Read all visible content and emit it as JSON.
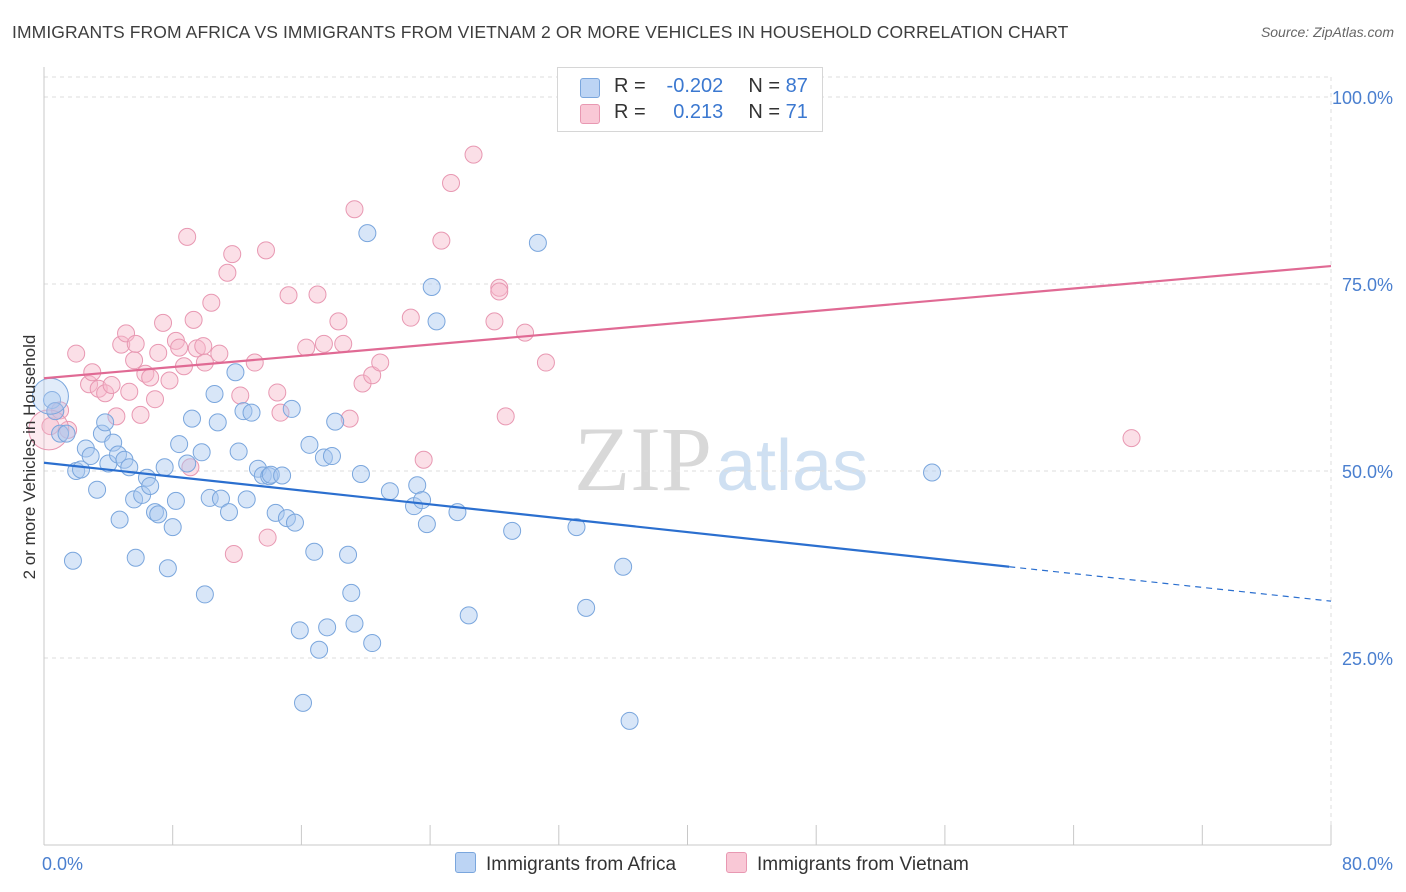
{
  "title": "IMMIGRANTS FROM AFRICA VS IMMIGRANTS FROM VIETNAM 2 OR MORE VEHICLES IN HOUSEHOLD CORRELATION CHART",
  "source": "Source: ZipAtlas.com",
  "watermark": {
    "zip": "ZIP",
    "atlas": "atlas"
  },
  "legend": [
    {
      "r_label": "R =",
      "r_value": "-0.202",
      "n_label": "N =",
      "n_value": "87"
    },
    {
      "r_label": "R =",
      "r_value": "0.213",
      "n_label": "N =",
      "n_value": "71"
    }
  ],
  "colors": {
    "africa_fill": "#a8c8f0",
    "africa_stroke": "#7aa6dd",
    "africa_line": "#2b6fcf",
    "vietnam_fill": "#f6b8ca",
    "vietnam_stroke": "#e898b2",
    "vietnam_line": "#e06a94",
    "tick_label": "#4a7fcf",
    "grid": "#dedede"
  },
  "chart_data": {
    "type": "scatter",
    "title": "IMMIGRANTS FROM AFRICA VS IMMIGRANTS FROM VIETNAM 2 OR MORE VEHICLES IN HOUSEHOLD CORRELATION CHART",
    "xlabel": "",
    "ylabel": "2 or more Vehicles in Household",
    "xlim": [
      0,
      80
    ],
    "ylim": [
      0,
      100
    ],
    "x_tick_labels": [
      "0.0%",
      "80.0%"
    ],
    "y_ticks": [
      25,
      50,
      75,
      100
    ],
    "y_tick_labels": [
      "25.0%",
      "50.0%",
      "75.0%",
      "100.0%"
    ],
    "grid": true,
    "legend_position": "bottom",
    "series": [
      {
        "name": "Immigrants from Africa",
        "r": -0.202,
        "n": 87,
        "trend": {
          "x_start": 0,
          "y_start": 51.1,
          "x_solid_end": 60,
          "y_solid_end": 37.2,
          "x_end": 80,
          "y_end": 32.6
        },
        "points": [
          [
            0.5,
            59.5
          ],
          [
            0.7,
            58.0
          ],
          [
            1.0,
            55.0
          ],
          [
            1.4,
            55.0
          ],
          [
            1.8,
            38.0
          ],
          [
            2.0,
            50.0
          ],
          [
            2.3,
            50.2
          ],
          [
            2.6,
            53.0
          ],
          [
            2.9,
            52.0
          ],
          [
            3.3,
            47.5
          ],
          [
            3.6,
            55.0
          ],
          [
            3.8,
            56.5
          ],
          [
            4.0,
            51.0
          ],
          [
            4.3,
            53.8
          ],
          [
            4.6,
            52.2
          ],
          [
            4.7,
            43.5
          ],
          [
            5.0,
            51.5
          ],
          [
            5.3,
            50.5
          ],
          [
            5.6,
            46.2
          ],
          [
            5.7,
            38.4
          ],
          [
            6.1,
            46.8
          ],
          [
            6.4,
            49.1
          ],
          [
            6.6,
            48.0
          ],
          [
            6.9,
            44.5
          ],
          [
            7.1,
            44.2
          ],
          [
            7.5,
            50.5
          ],
          [
            7.7,
            37.0
          ],
          [
            8.0,
            42.5
          ],
          [
            8.2,
            46.0
          ],
          [
            8.4,
            53.6
          ],
          [
            8.9,
            51.0
          ],
          [
            9.2,
            57.0
          ],
          [
            9.8,
            52.5
          ],
          [
            10.0,
            33.5
          ],
          [
            10.3,
            46.4
          ],
          [
            10.6,
            60.3
          ],
          [
            10.8,
            56.5
          ],
          [
            11.0,
            46.3
          ],
          [
            11.5,
            44.5
          ],
          [
            11.9,
            63.2
          ],
          [
            12.1,
            52.6
          ],
          [
            12.4,
            58.0
          ],
          [
            12.6,
            46.2
          ],
          [
            12.9,
            57.8
          ],
          [
            13.3,
            50.3
          ],
          [
            13.6,
            49.4
          ],
          [
            14.0,
            49.3
          ],
          [
            14.1,
            49.5
          ],
          [
            14.4,
            44.4
          ],
          [
            14.8,
            49.4
          ],
          [
            15.1,
            43.7
          ],
          [
            15.4,
            58.3
          ],
          [
            15.6,
            43.1
          ],
          [
            15.9,
            28.7
          ],
          [
            16.1,
            19.0
          ],
          [
            16.5,
            53.5
          ],
          [
            16.8,
            39.2
          ],
          [
            17.1,
            26.1
          ],
          [
            17.4,
            51.8
          ],
          [
            17.6,
            29.1
          ],
          [
            17.9,
            52.0
          ],
          [
            18.1,
            56.6
          ],
          [
            18.9,
            38.8
          ],
          [
            19.1,
            33.7
          ],
          [
            19.3,
            29.6
          ],
          [
            19.7,
            49.6
          ],
          [
            20.1,
            81.8
          ],
          [
            20.4,
            27.0
          ],
          [
            21.5,
            47.3
          ],
          [
            23.0,
            45.3
          ],
          [
            23.2,
            48.1
          ],
          [
            23.5,
            46.1
          ],
          [
            23.8,
            42.9
          ],
          [
            24.1,
            74.6
          ],
          [
            24.4,
            70.0
          ],
          [
            25.7,
            44.5
          ],
          [
            26.4,
            30.7
          ],
          [
            29.1,
            42.0
          ],
          [
            30.7,
            80.5
          ],
          [
            33.1,
            42.5
          ],
          [
            33.7,
            31.7
          ],
          [
            36.0,
            37.2
          ],
          [
            36.4,
            16.6
          ],
          [
            55.2,
            49.8
          ]
        ]
      },
      {
        "name": "Immigrants from Vietnam",
        "r": 0.213,
        "n": 71,
        "trend": {
          "x_start": 0,
          "y_start": 62.4,
          "x_end": 80,
          "y_end": 77.4
        },
        "points": [
          [
            0.4,
            56.0
          ],
          [
            0.7,
            58.0
          ],
          [
            1.0,
            58.1
          ],
          [
            1.5,
            55.5
          ],
          [
            2.0,
            65.7
          ],
          [
            2.8,
            61.6
          ],
          [
            3.0,
            63.2
          ],
          [
            3.4,
            61.0
          ],
          [
            3.8,
            60.4
          ],
          [
            4.2,
            61.5
          ],
          [
            4.5,
            57.3
          ],
          [
            4.8,
            66.9
          ],
          [
            5.1,
            68.4
          ],
          [
            5.3,
            60.6
          ],
          [
            5.6,
            64.8
          ],
          [
            5.7,
            67.0
          ],
          [
            6.0,
            57.5
          ],
          [
            6.3,
            63.0
          ],
          [
            6.6,
            62.5
          ],
          [
            6.9,
            59.6
          ],
          [
            7.1,
            65.8
          ],
          [
            7.4,
            69.8
          ],
          [
            7.8,
            62.1
          ],
          [
            8.2,
            67.4
          ],
          [
            8.4,
            66.5
          ],
          [
            8.7,
            64.0
          ],
          [
            8.9,
            81.3
          ],
          [
            9.1,
            50.5
          ],
          [
            9.3,
            70.2
          ],
          [
            9.5,
            66.4
          ],
          [
            9.9,
            66.7
          ],
          [
            10.0,
            64.5
          ],
          [
            10.4,
            72.5
          ],
          [
            10.9,
            65.7
          ],
          [
            11.4,
            76.5
          ],
          [
            11.7,
            79.0
          ],
          [
            11.8,
            38.9
          ],
          [
            12.2,
            60.1
          ],
          [
            13.1,
            64.5
          ],
          [
            13.8,
            79.5
          ],
          [
            13.9,
            41.1
          ],
          [
            14.5,
            60.5
          ],
          [
            14.7,
            57.8
          ],
          [
            15.2,
            73.5
          ],
          [
            16.3,
            66.5
          ],
          [
            17.0,
            73.6
          ],
          [
            17.4,
            67.0
          ],
          [
            18.3,
            70.0
          ],
          [
            18.6,
            67.0
          ],
          [
            19.0,
            57.0
          ],
          [
            19.3,
            85.0
          ],
          [
            19.8,
            61.7
          ],
          [
            20.4,
            62.8
          ],
          [
            20.9,
            64.5
          ],
          [
            22.8,
            70.5
          ],
          [
            23.6,
            51.5
          ],
          [
            24.7,
            80.8
          ],
          [
            25.3,
            88.5
          ],
          [
            26.7,
            92.3
          ],
          [
            28.0,
            70.0
          ],
          [
            28.3,
            74.5
          ],
          [
            28.3,
            74.0
          ],
          [
            28.7,
            57.3
          ],
          [
            29.9,
            68.5
          ],
          [
            31.2,
            64.5
          ],
          [
            67.6,
            54.4
          ]
        ]
      }
    ]
  }
}
